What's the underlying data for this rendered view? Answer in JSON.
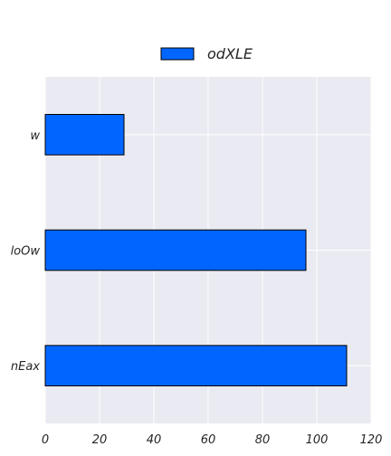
{
  "chart_data": {
    "type": "bar",
    "orientation": "horizontal",
    "categories": [
      "w",
      "loOw",
      "nEax"
    ],
    "series": [
      {
        "name": "odXLE",
        "values": [
          29,
          96,
          111
        ],
        "color": "#0066ff"
      }
    ],
    "title": "",
    "xlabel": "",
    "ylabel": "",
    "xlim": [
      0,
      120
    ],
    "x_ticks": [
      "0",
      "20",
      "40",
      "60",
      "80",
      "100",
      "120"
    ],
    "grid": true,
    "legend_position": "top-center",
    "background_color": "#eaeaf2",
    "grid_color": "#ffffff"
  }
}
